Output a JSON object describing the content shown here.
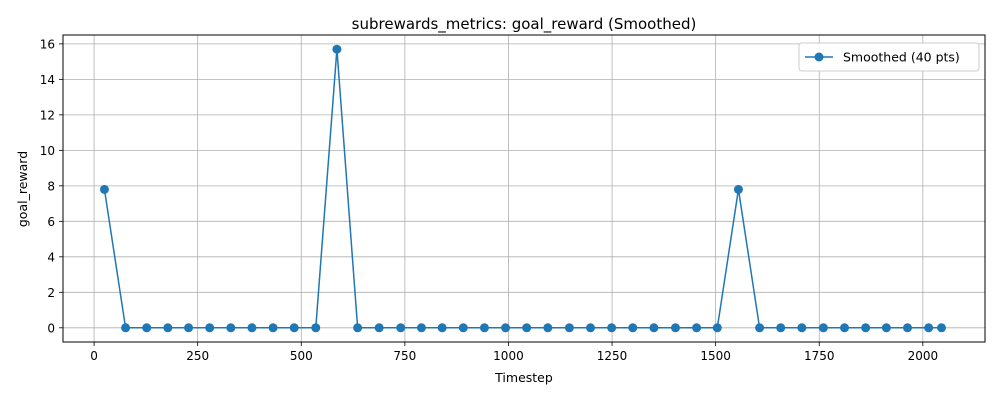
{
  "chart_data": {
    "type": "line",
    "title": "subrewards_metrics: goal_reward (Smoothed)",
    "xlabel": "Timestep",
    "ylabel": "goal_reward",
    "xlim": [
      -75,
      2150
    ],
    "ylim": [
      -0.8,
      16.5
    ],
    "x_ticks": [
      0,
      250,
      500,
      750,
      1000,
      1250,
      1500,
      1750,
      2000
    ],
    "y_ticks": [
      0,
      2,
      4,
      6,
      8,
      10,
      12,
      14,
      16
    ],
    "grid": true,
    "legend_position": "top-right",
    "line_color": "#1f77b4",
    "series": [
      {
        "name": "Smoothed (40 pts)",
        "x": [
          25,
          76,
          127,
          178,
          228,
          279,
          330,
          381,
          432,
          483,
          535,
          586,
          636,
          688,
          740,
          790,
          840,
          891,
          942,
          993,
          1044,
          1095,
          1147,
          1198,
          1249,
          1300,
          1351,
          1403,
          1454,
          1504,
          1555,
          1606,
          1657,
          1708,
          1760,
          1811,
          1862,
          1912,
          1963,
          2014,
          2045
        ],
        "values": [
          7.8,
          0,
          0,
          0,
          0,
          0,
          0,
          0,
          0,
          0,
          0,
          15.7,
          0,
          0,
          0,
          0,
          0,
          0,
          0,
          0,
          0,
          0,
          0,
          0,
          0,
          0,
          0,
          0,
          0,
          0,
          7.8,
          0,
          0,
          0,
          0,
          0,
          0,
          0,
          0,
          0,
          0
        ]
      }
    ]
  }
}
